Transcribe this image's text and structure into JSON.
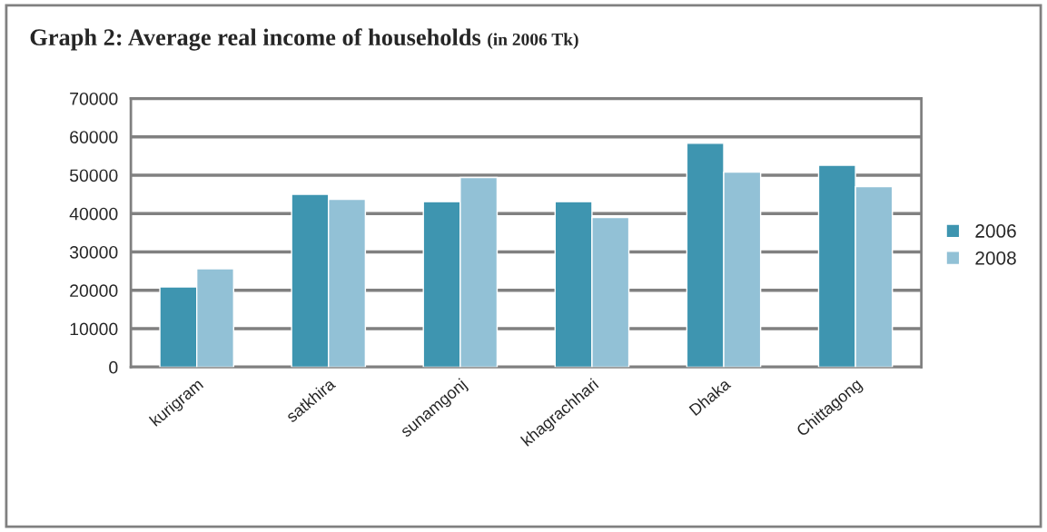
{
  "chart_data": {
    "type": "bar",
    "title": "Graph 2: Average real income of households",
    "subtitle": "(in 2006 Tk)",
    "categories": [
      "kurigram",
      "satkhira",
      "sunamgonj",
      "khagrachhari",
      "Dhaka",
      "Chittagong"
    ],
    "series": [
      {
        "name": "2006",
        "color": "#3e95b0",
        "values": [
          20900,
          45000,
          43100,
          43100,
          58300,
          52600
        ]
      },
      {
        "name": "2008",
        "color": "#92c1d6",
        "values": [
          25600,
          43700,
          49400,
          39000,
          50800,
          47000
        ]
      }
    ],
    "ylim": [
      0,
      70000
    ],
    "yticks": [
      0,
      10000,
      20000,
      30000,
      40000,
      50000,
      60000,
      70000
    ],
    "grid": "y",
    "legend": "right"
  }
}
